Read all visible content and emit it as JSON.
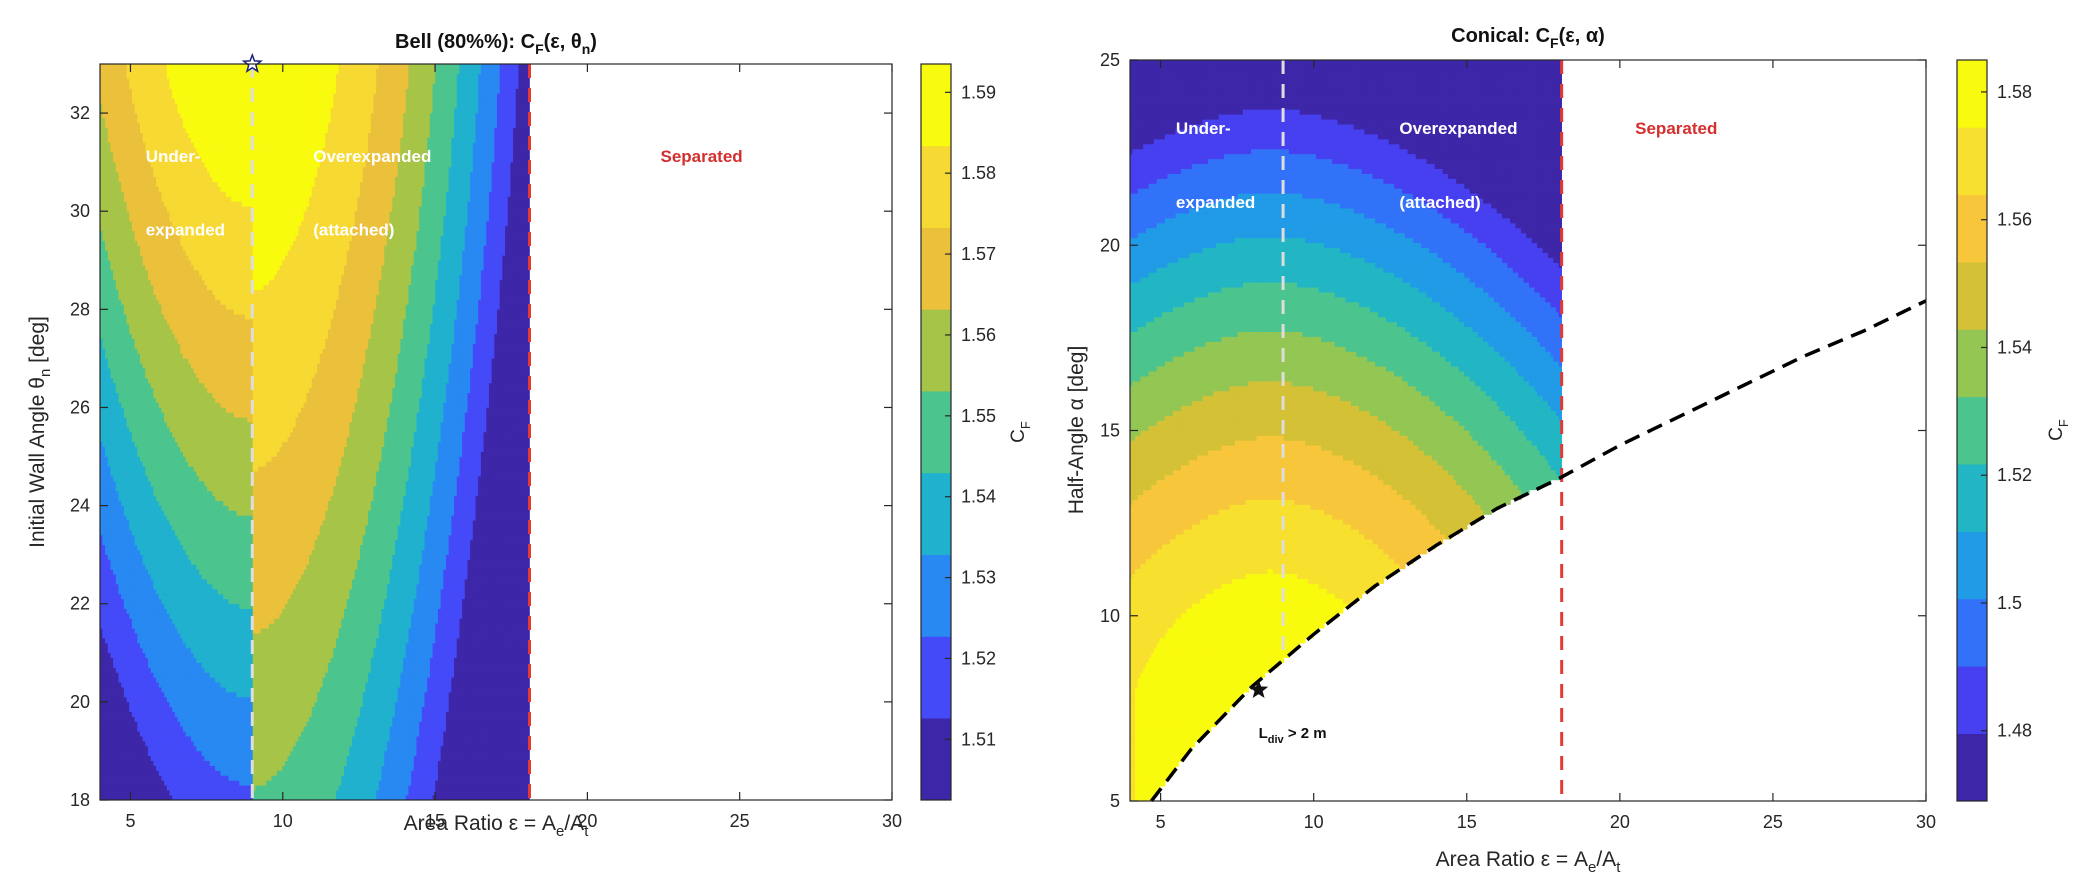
{
  "colormap": [
    "#3e26a8",
    "#4743f8",
    "#2c7ef8",
    "#1ca8de",
    "#26bfb2",
    "#71c969",
    "#c5c133",
    "#f8c03d",
    "#f7dd32",
    "#f9fb0e"
  ],
  "chart_data": [
    {
      "type": "heatmap",
      "title": {
        "prefix": "Bell (80%%): C",
        "sub1": "F",
        "mid": "(ε, θ",
        "sub2": "n",
        "suffix": ")"
      },
      "xlabel": {
        "main": "Area Ratio ε = A",
        "sub1": "e",
        "mid": "/A",
        "sub2": "t"
      },
      "ylabel": {
        "main": "Initial Wall Angle θ",
        "sub": "n",
        "suffix": " [deg]"
      },
      "xlim": [
        4,
        30
      ],
      "ylim": [
        18,
        33
      ],
      "xticks": [
        5,
        10,
        15,
        20,
        25,
        30
      ],
      "yticks": [
        18,
        20,
        22,
        24,
        26,
        28,
        30,
        32
      ],
      "optimum": {
        "eps": 9.0,
        "theta": 33.0
      },
      "separation_eps": 18.1,
      "region_labels": [
        {
          "text": "Under-",
          "x": 5.5,
          "y": 31.0,
          "color": "#ffffff"
        },
        {
          "text": "expanded",
          "x": 5.5,
          "y": 29.5,
          "color": "#ffffff"
        },
        {
          "text": "Overexpanded",
          "x": 11.0,
          "y": 31.0,
          "color": "#ffffff"
        },
        {
          "text": "(attached)",
          "x": 11.0,
          "y": 29.5,
          "color": "#ffffff"
        },
        {
          "text": "Separated",
          "x": 22.4,
          "y": 31.0,
          "color": "#d32f2f"
        }
      ],
      "colorbar": {
        "label": {
          "main": "C",
          "sub": "F"
        },
        "range": [
          1.5025,
          1.5935
        ],
        "ticks": [
          1.51,
          1.52,
          1.53,
          1.54,
          1.55,
          1.56,
          1.57,
          1.58,
          1.59
        ]
      }
    },
    {
      "type": "heatmap",
      "title": {
        "prefix": "Conical: C",
        "sub1": "F",
        "mid": "(ε, α)",
        "sub2": "",
        "suffix": ""
      },
      "xlabel": {
        "main": "Area Ratio ε = A",
        "sub1": "e",
        "mid": "/A",
        "sub2": "t"
      },
      "ylabel": {
        "main": "Half-Angle α",
        "sub": "",
        "suffix": " [deg]"
      },
      "xlim": [
        4,
        30
      ],
      "ylim": [
        5,
        25
      ],
      "xticks": [
        5,
        10,
        15,
        20,
        25,
        30
      ],
      "yticks": [
        5,
        10,
        15,
        20,
        25
      ],
      "optimum": {
        "eps": 8.2,
        "alpha": 8.0
      },
      "separation_eps": 18.1,
      "length_limit": {
        "label": {
          "main": "L",
          "sub": "div",
          "suffix": " > 2 m"
        },
        "label_pos": {
          "x": 8.2,
          "y": 6.7
        },
        "points": [
          [
            4.7,
            5.0
          ],
          [
            6.0,
            6.4
          ],
          [
            8.0,
            8.1
          ],
          [
            10.0,
            9.5
          ],
          [
            12.0,
            10.8
          ],
          [
            14.0,
            11.9
          ],
          [
            16.0,
            12.9
          ],
          [
            18.0,
            13.7
          ],
          [
            20.0,
            14.6
          ],
          [
            22.0,
            15.4
          ],
          [
            24.0,
            16.2
          ],
          [
            26.0,
            17.0
          ],
          [
            28.0,
            17.7
          ],
          [
            30.0,
            18.5
          ]
        ]
      },
      "region_labels": [
        {
          "text": "Under-",
          "x": 5.5,
          "y": 23.0,
          "color": "#ffffff"
        },
        {
          "text": "expanded",
          "x": 5.5,
          "y": 21.0,
          "color": "#ffffff"
        },
        {
          "text": "Overexpanded",
          "x": 12.8,
          "y": 23.0,
          "color": "#ffffff"
        },
        {
          "text": "(attached)",
          "x": 12.8,
          "y": 21.0,
          "color": "#ffffff"
        },
        {
          "text": "Separated",
          "x": 20.5,
          "y": 23.0,
          "color": "#d32f2f"
        }
      ],
      "colorbar": {
        "label": {
          "main": "C",
          "sub": "F"
        },
        "range": [
          1.469,
          1.585
        ],
        "ticks": [
          1.48,
          1.5,
          1.52,
          1.54,
          1.56,
          1.58
        ]
      }
    }
  ]
}
